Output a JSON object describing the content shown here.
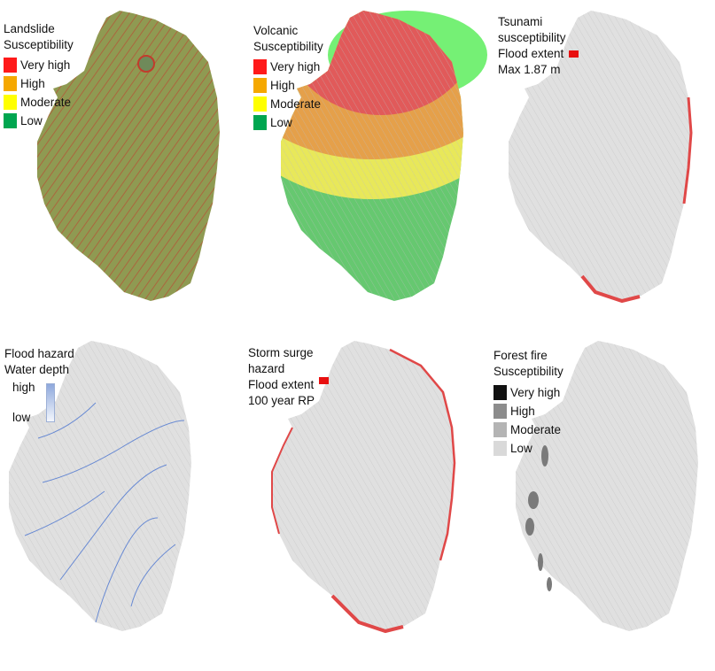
{
  "panels": {
    "landslide": {
      "title": [
        "Landslide",
        "Susceptibility"
      ],
      "legend": [
        {
          "label": "Very high",
          "color": "#ff1a1a"
        },
        {
          "label": "High",
          "color": "#f5a800"
        },
        {
          "label": "Moderate",
          "color": "#ffff00"
        },
        {
          "label": "Low",
          "color": "#00a650"
        }
      ]
    },
    "volcanic": {
      "title": [
        "Volcanic",
        "Susceptibility"
      ],
      "legend": [
        {
          "label": "Very high",
          "color": "#ff1a1a"
        },
        {
          "label": "High",
          "color": "#f5a800"
        },
        {
          "label": "Moderate",
          "color": "#ffff00"
        },
        {
          "label": "Low",
          "color": "#00a650"
        }
      ]
    },
    "tsunami": {
      "title": [
        "Tsunami",
        "susceptibility"
      ],
      "flood_label": "Flood extent",
      "max_label": "Max 1.87 m",
      "flood_color": "#e81010"
    },
    "flood": {
      "title": [
        "Flood hazard",
        "Water depth"
      ],
      "high_label": "high",
      "low_label": "low",
      "color": "#3f6fd0"
    },
    "storm_surge": {
      "title": [
        "Storm surge",
        "hazard"
      ],
      "flood_label": "Flood extent",
      "rp_label": "100 year RP",
      "flood_color": "#e81010"
    },
    "forest_fire": {
      "title": [
        "Forest fire",
        "Susceptibility"
      ],
      "legend": [
        {
          "label": "Very high",
          "color": "#111111"
        },
        {
          "label": "High",
          "color": "#8c8c8c"
        },
        {
          "label": "Moderate",
          "color": "#b4b4b4"
        },
        {
          "label": "Low",
          "color": "#d9d9d9"
        }
      ]
    }
  }
}
